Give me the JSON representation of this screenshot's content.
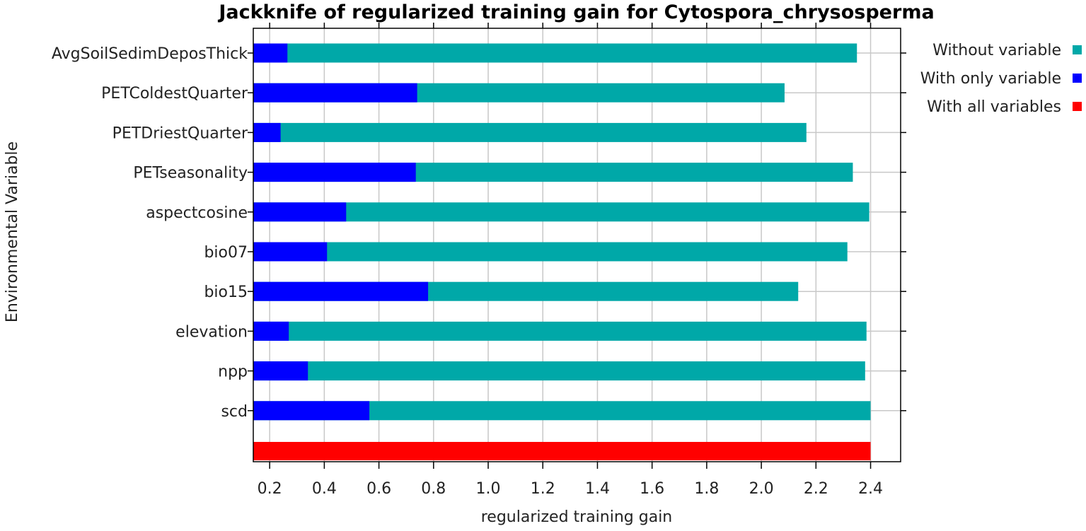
{
  "chart_data": {
    "type": "bar",
    "orientation": "horizontal",
    "title": "Jackknife of regularized training gain for Cytospora_chrysosperma",
    "xlabel": "regularized training gain",
    "ylabel": "Environmental Variable",
    "xlim": [
      0.14,
      2.51
    ],
    "x_ticks": [
      "0.2",
      "0.4",
      "0.6",
      "0.8",
      "1.0",
      "1.2",
      "1.4",
      "1.6",
      "1.8",
      "2.0",
      "2.2",
      "2.4"
    ],
    "x_tick_values": [
      0.2,
      0.4,
      0.6,
      0.8,
      1.0,
      1.2,
      1.4,
      1.6,
      1.8,
      2.0,
      2.2,
      2.4
    ],
    "grid": true,
    "legend_position": "top-right",
    "categories": [
      "AvgSoilSedimDeposThick",
      "PETColdestQuarter",
      "PETDriestQuarter",
      "PETseasonality",
      "aspectcosine",
      "bio07",
      "bio15",
      "elevation",
      "npp",
      "scd"
    ],
    "series": [
      {
        "name": "Without variable",
        "color": "#00a8a8",
        "values": [
          2.35,
          2.085,
          2.165,
          2.335,
          2.395,
          2.315,
          2.135,
          2.385,
          2.38,
          2.4
        ]
      },
      {
        "name": "With only variable",
        "color": "#0000ff",
        "values": [
          0.265,
          0.74,
          0.24,
          0.735,
          0.48,
          0.41,
          0.78,
          0.27,
          0.34,
          0.565
        ]
      }
    ],
    "all_variables": {
      "name": "With all variables",
      "color": "#ff0000",
      "value": 2.4
    }
  }
}
